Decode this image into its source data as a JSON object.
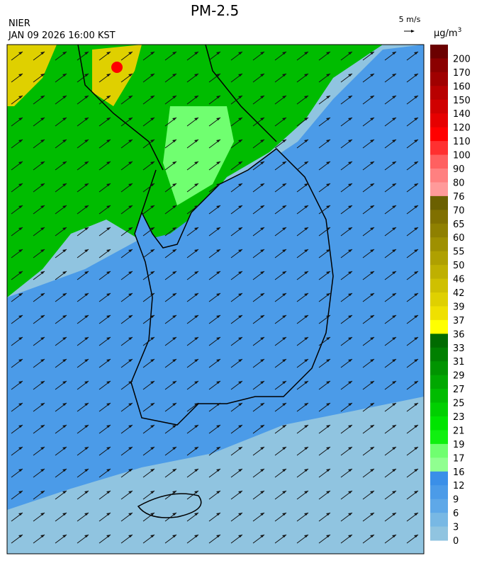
{
  "header": {
    "title": "PM-2.5",
    "agency": "NIER",
    "datetime": "JAN 09 2026 16:00 KST",
    "wind_scale": "5 m/s",
    "unit": "μg/m",
    "unit_superscript": "3"
  },
  "colorbar": {
    "labels": [
      "200",
      "170",
      "160",
      "150",
      "140",
      "120",
      "110",
      "100",
      "90",
      "80",
      "76",
      "70",
      "65",
      "60",
      "55",
      "50",
      "46",
      "42",
      "39",
      "37",
      "36",
      "33",
      "31",
      "29",
      "27",
      "25",
      "23",
      "21",
      "19",
      "17",
      "16",
      "12",
      "9",
      "6",
      "3",
      "0"
    ],
    "colors": [
      "#6b0000",
      "#8b0000",
      "#a00000",
      "#b80000",
      "#d00000",
      "#e60000",
      "#ff0000",
      "#ff3030",
      "#ff6060",
      "#ff8080",
      "#ff9a9a",
      "#6b6000",
      "#807000",
      "#8f8000",
      "#9f9000",
      "#afa000",
      "#bfb000",
      "#cfc000",
      "#dfd000",
      "#efe000",
      "#ffff00",
      "#006b00",
      "#008000",
      "#009400",
      "#00a800",
      "#00bc00",
      "#00d000",
      "#00e400",
      "#10f010",
      "#70ff70",
      "#90ff90",
      "#3a8fe8",
      "#4b9be8",
      "#5ea8e8",
      "#78b8e4",
      "#90c4e0"
    ]
  }
}
